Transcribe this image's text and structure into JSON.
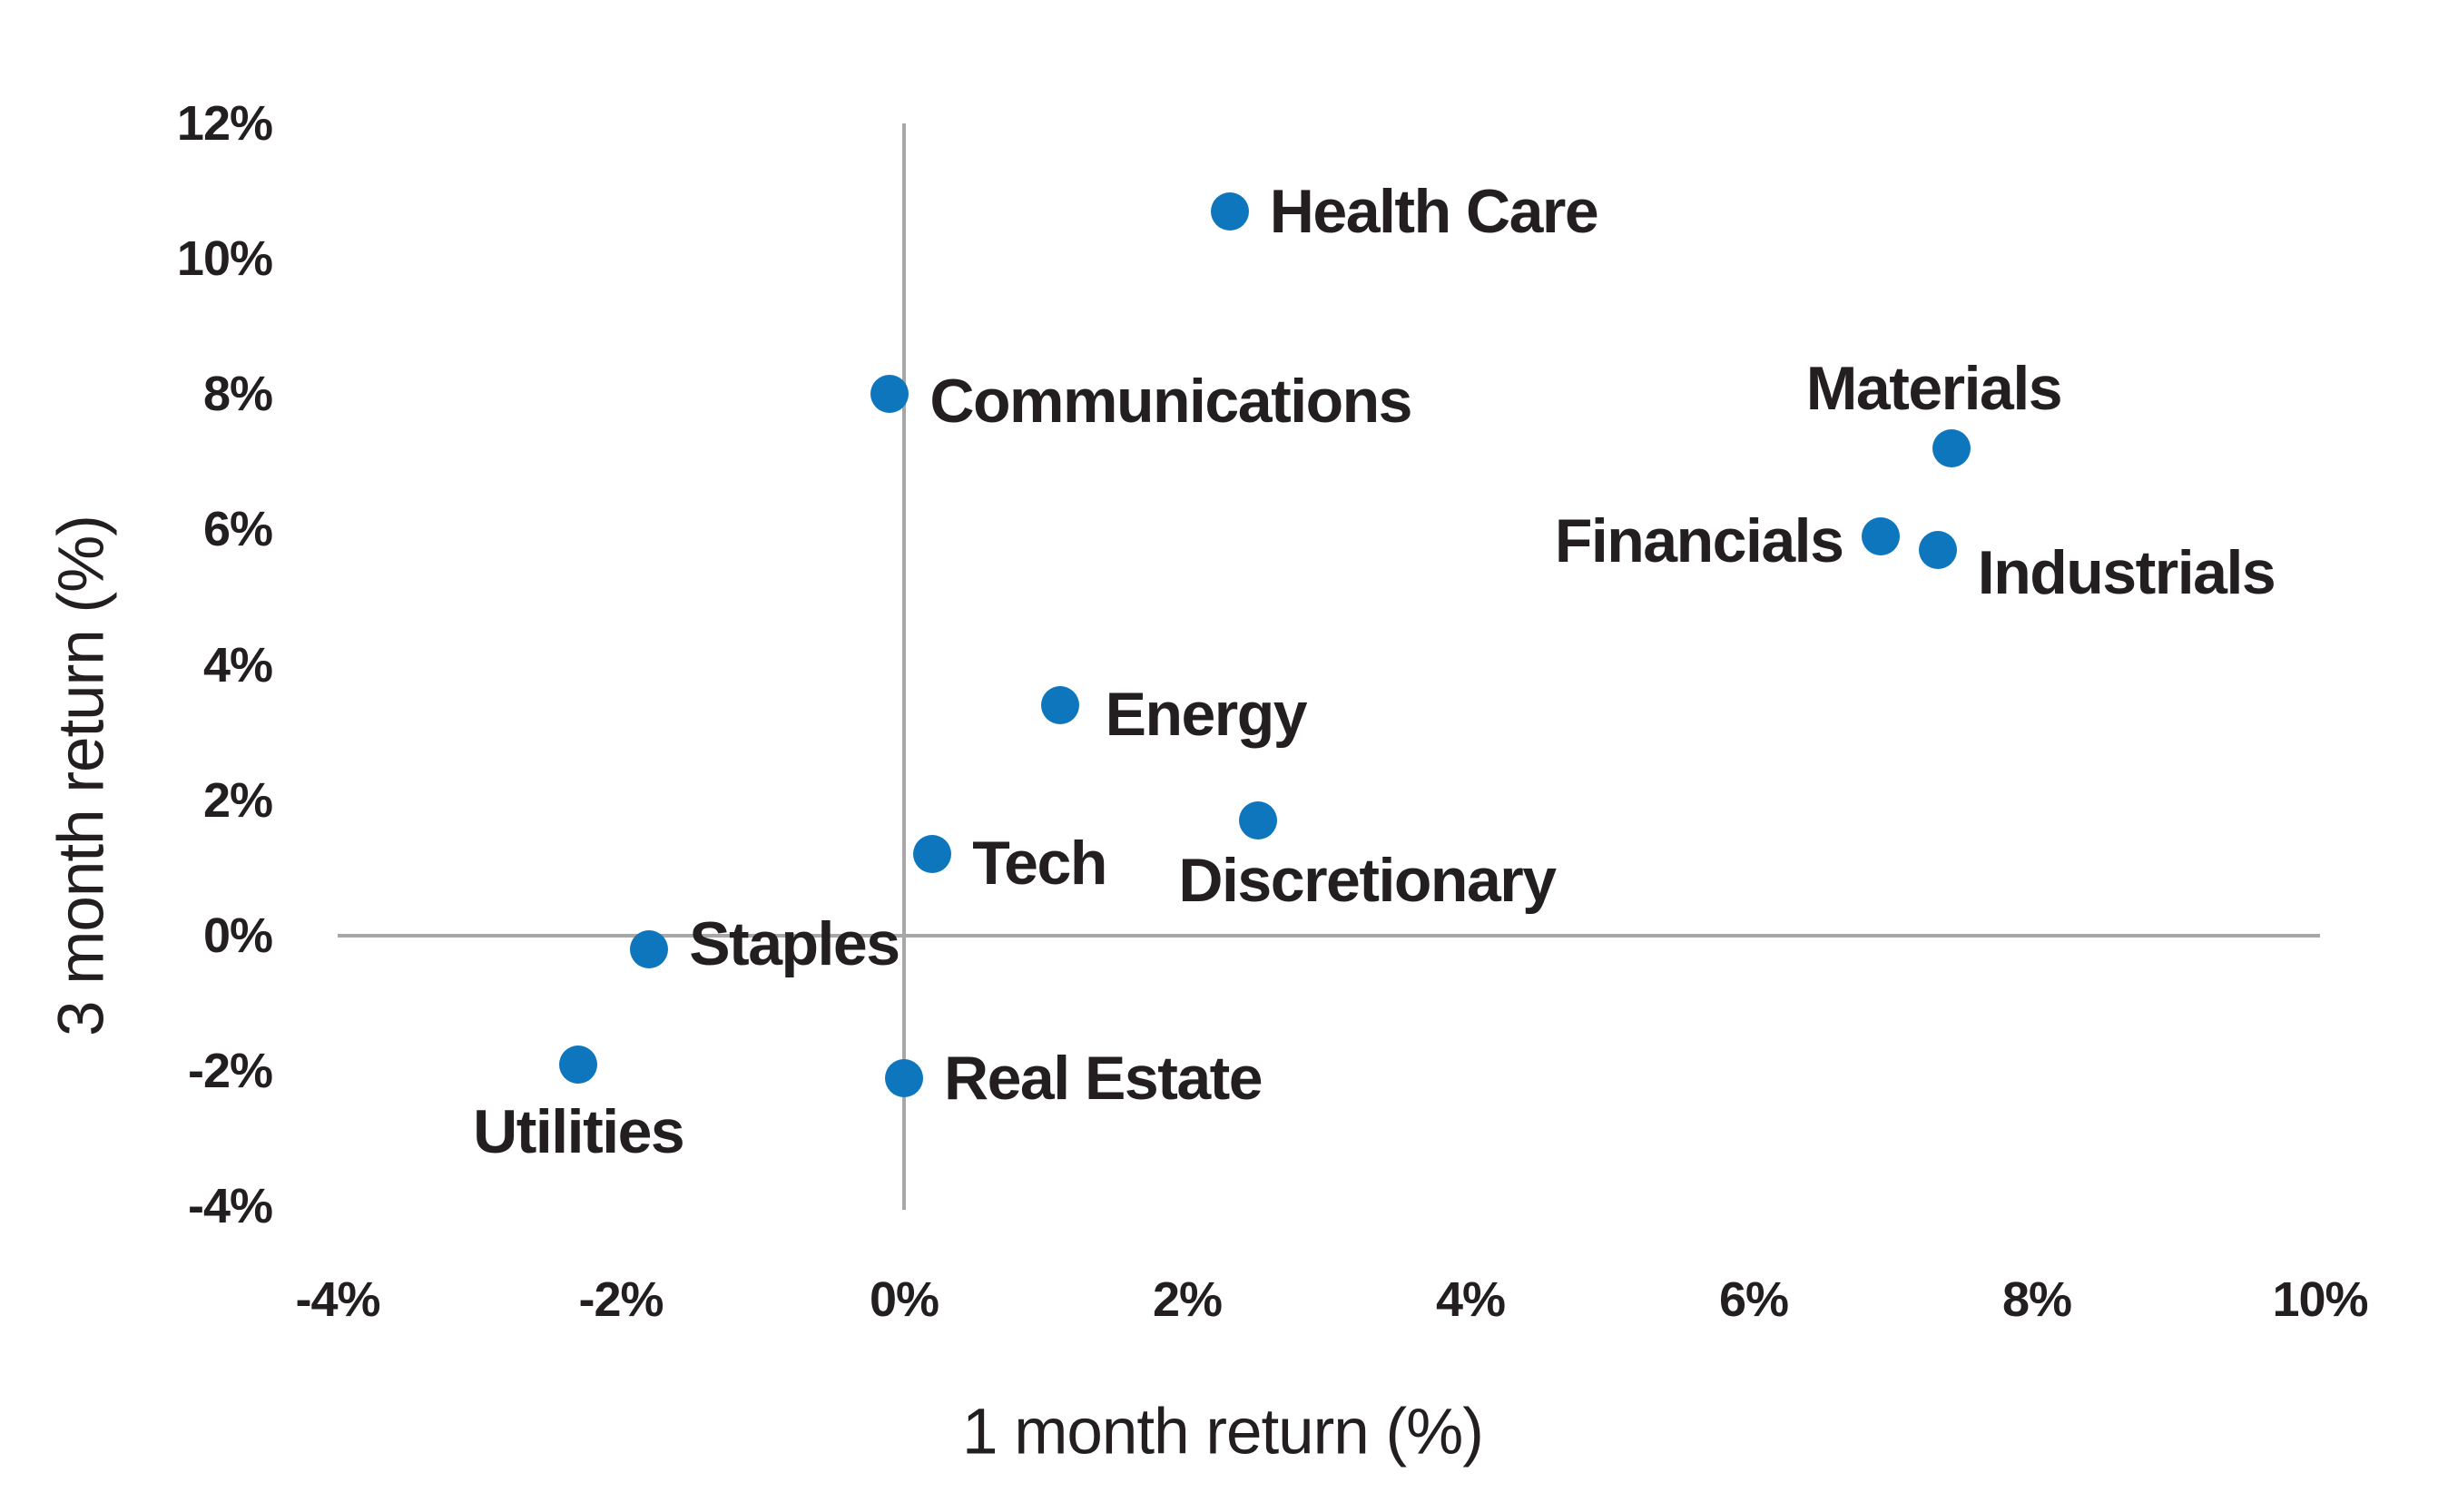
{
  "chart_data": {
    "type": "scatter",
    "title": "",
    "xlabel": "1 month return (%)",
    "ylabel": "3 month return (%)",
    "xlim": [
      -4,
      10
    ],
    "ylim": [
      -4,
      12
    ],
    "grid": "zero-lines-only",
    "legend": "none",
    "x_ticks": [
      {
        "label": "-4%",
        "value": -4
      },
      {
        "label": "-2%",
        "value": -2
      },
      {
        "label": "0%",
        "value": 0
      },
      {
        "label": "2%",
        "value": 2
      },
      {
        "label": "4%",
        "value": 4
      },
      {
        "label": "6%",
        "value": 6
      },
      {
        "label": "8%",
        "value": 8
      },
      {
        "label": "10%",
        "value": 10
      }
    ],
    "y_ticks": [
      {
        "label": "12%",
        "value": 12
      },
      {
        "label": "10%",
        "value": 10
      },
      {
        "label": "8%",
        "value": 8
      },
      {
        "label": "6%",
        "value": 6
      },
      {
        "label": "4%",
        "value": 4
      },
      {
        "label": "2%",
        "value": 2
      },
      {
        "label": "0%",
        "value": 0
      },
      {
        "label": "-2%",
        "value": -2
      },
      {
        "label": "-4%",
        "value": -4
      }
    ],
    "points": [
      {
        "label": "Health Care",
        "x": 2.3,
        "y": 10.7,
        "label_pos": "right",
        "nudge": [
          0,
          0
        ]
      },
      {
        "label": "Communications",
        "x": -0.1,
        "y": 8.0,
        "label_pos": "right",
        "nudge": [
          0,
          8
        ]
      },
      {
        "label": "Materials",
        "x": 7.4,
        "y": 7.2,
        "label_pos": "above",
        "nudge": [
          -20,
          0
        ]
      },
      {
        "label": "Financials",
        "x": 6.9,
        "y": 5.9,
        "label_pos": "left",
        "nudge": [
          0,
          5
        ]
      },
      {
        "label": "Industrials",
        "x": 7.3,
        "y": 5.7,
        "label_pos": "right",
        "nudge": [
          0,
          25
        ]
      },
      {
        "label": "Energy",
        "x": 1.1,
        "y": 3.4,
        "label_pos": "right",
        "nudge": [
          6,
          10
        ]
      },
      {
        "label": "Discretionary",
        "x": 2.5,
        "y": 1.7,
        "label_pos": "below",
        "nudge": [
          120,
          0
        ]
      },
      {
        "label": "Tech",
        "x": 0.2,
        "y": 1.2,
        "label_pos": "right",
        "nudge": [
          0,
          10
        ]
      },
      {
        "label": "Staples",
        "x": -1.8,
        "y": -0.2,
        "label_pos": "right",
        "nudge": [
          0,
          -6
        ]
      },
      {
        "label": "Utilities",
        "x": -2.3,
        "y": -1.9,
        "label_pos": "below",
        "nudge": [
          0,
          8
        ]
      },
      {
        "label": "Real Estate",
        "x": 0.0,
        "y": -2.1,
        "label_pos": "right",
        "nudge": [
          0,
          0
        ]
      }
    ],
    "colors": {
      "dot": "#0e76bd",
      "text": "#231f20",
      "zero_line": "#a7a7a7",
      "background": "#ffffff"
    }
  }
}
